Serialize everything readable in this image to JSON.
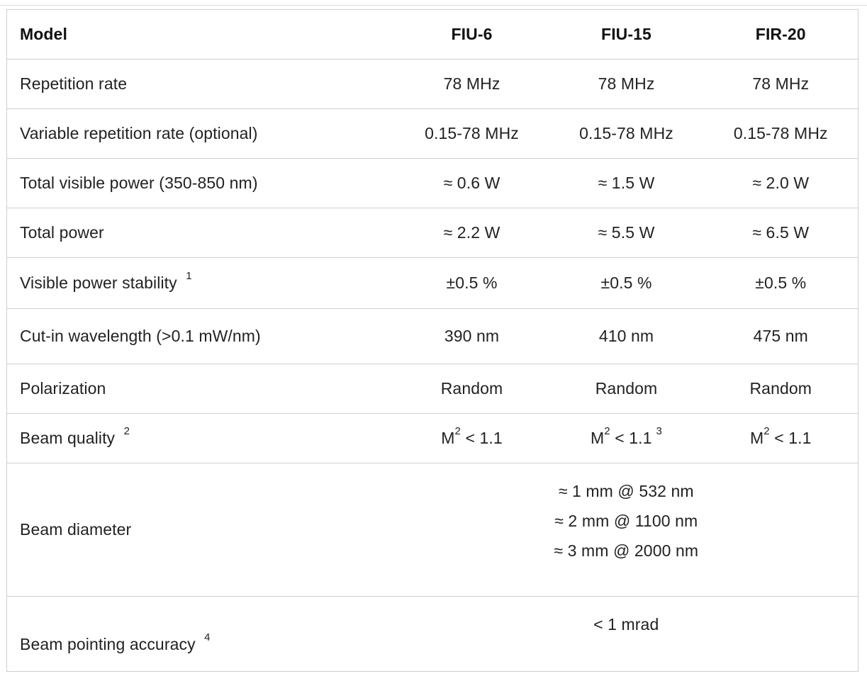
{
  "header": {
    "label": "Model",
    "models": [
      "FIU-6",
      "FIU-15",
      "FIR-20"
    ]
  },
  "rows": [
    {
      "label": "Repetition rate",
      "values": [
        "78 MHz",
        "78 MHz",
        "78 MHz"
      ]
    },
    {
      "label": "Variable repetition rate (optional)",
      "values": [
        "0.15-78 MHz",
        "0.15-78 MHz",
        "0.15-78 MHz"
      ]
    },
    {
      "label": "Total visible power (350-850 nm)",
      "values": [
        "≈ 0.6 W",
        "≈ 1.5 W",
        "≈ 2.0 W"
      ]
    },
    {
      "label": "Total power",
      "values": [
        "≈ 2.2 W",
        "≈ 5.5 W",
        "≈ 6.5 W"
      ]
    },
    {
      "label": "Visible power stability",
      "footnote": "1",
      "values": [
        "±0.5 %",
        "±0.5 %",
        "±0.5 %"
      ]
    },
    {
      "label": "Cut-in wavelength (>0.1 mW/nm)",
      "values": [
        "390 nm",
        "410 nm",
        "475 nm"
      ]
    },
    {
      "label": "Polarization",
      "values": [
        "Random",
        "Random",
        "Random"
      ]
    }
  ],
  "beam_quality": {
    "label": "Beam quality",
    "footnote": "2",
    "prefix": "M",
    "exponent": "2",
    "suffix": " < 1.1",
    "footnotes": [
      "",
      "3",
      ""
    ]
  },
  "beam_diameter": {
    "label": "Beam diameter",
    "lines": [
      "≈ 1 mm @ 532 nm",
      "≈ 2 mm @ 1100 nm",
      "≈ 3 mm @ 2000 nm"
    ]
  },
  "beam_pointing": {
    "label": "Beam pointing accuracy",
    "footnote": "4",
    "value": "< 1 mrad"
  }
}
